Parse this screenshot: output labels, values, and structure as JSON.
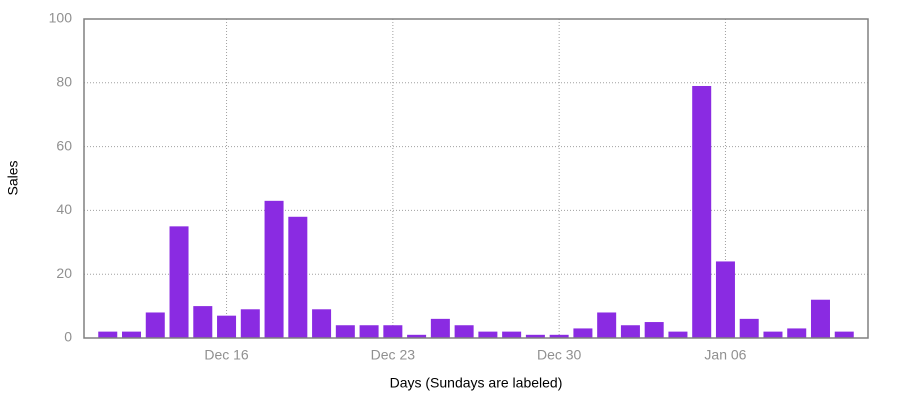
{
  "chart_data": {
    "type": "bar",
    "y_label": "Sales",
    "x_label": "Days (Sundays are labeled)",
    "categories": [
      null,
      null,
      null,
      null,
      null,
      "Dec 16",
      null,
      null,
      null,
      null,
      null,
      null,
      "Dec 23",
      null,
      null,
      null,
      null,
      null,
      null,
      "Dec 30",
      null,
      null,
      null,
      null,
      null,
      null,
      "Jan 06",
      null,
      null,
      null,
      null,
      null
    ],
    "values": [
      2,
      2,
      8,
      35,
      10,
      7,
      9,
      43,
      38,
      9,
      4,
      4,
      4,
      1,
      6,
      4,
      2,
      2,
      1,
      1,
      3,
      8,
      4,
      5,
      2,
      79,
      24,
      6,
      2,
      3,
      12,
      2
    ],
    "color": "#8a2be2",
    "ylim": [
      0,
      100
    ],
    "yticks": [
      0,
      20,
      40,
      60,
      80,
      100
    ],
    "grid": true
  }
}
